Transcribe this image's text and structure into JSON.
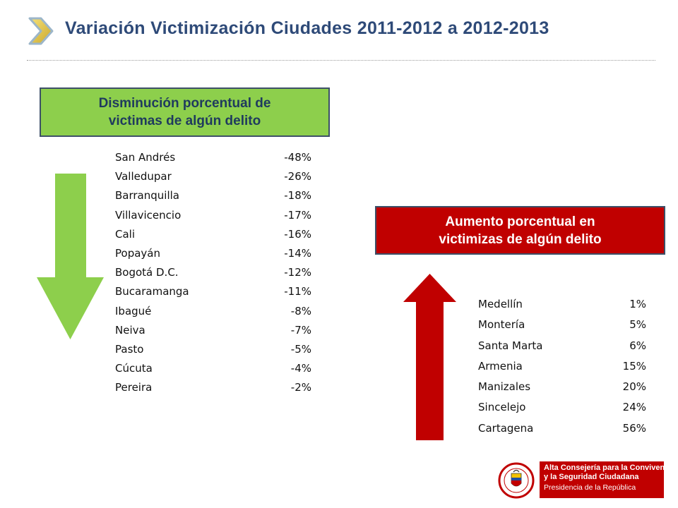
{
  "title": "Variación  Victimización Ciudades 2011-2012 a 2012-2013",
  "decrease": {
    "header_line1": "Disminución porcentual de",
    "header_line2": "victimas de algún delito",
    "color": "#8dcf4c",
    "items": [
      {
        "city": "San Andrés",
        "value": "-48%"
      },
      {
        "city": "Valledupar",
        "value": "-26%"
      },
      {
        "city": "Barranquilla",
        "value": "-18%"
      },
      {
        "city": "Villavicencio",
        "value": "-17%"
      },
      {
        "city": "Cali",
        "value": "-16%"
      },
      {
        "city": "Popayán",
        "value": "-14%"
      },
      {
        "city": "Bogotá D.C.",
        "value": "-12%"
      },
      {
        "city": "Bucaramanga",
        "value": "-11%"
      },
      {
        "city": "Ibagué",
        "value": "-8%"
      },
      {
        "city": "Neiva",
        "value": "-7%"
      },
      {
        "city": "Pasto",
        "value": "-5%"
      },
      {
        "city": "Cúcuta",
        "value": "-4%"
      },
      {
        "city": "Pereira",
        "value": "-2%"
      }
    ]
  },
  "increase": {
    "header_line1": "Aumento porcentual en",
    "header_line2": "victimizas de algún delito",
    "color": "#c00000",
    "items": [
      {
        "city": "Medellín",
        "value": "1%"
      },
      {
        "city": "Montería",
        "value": "5%"
      },
      {
        "city": "Santa Marta",
        "value": "6%"
      },
      {
        "city": "Armenia",
        "value": "15%"
      },
      {
        "city": "Manizales",
        "value": "20%"
      },
      {
        "city": "Sincelejo",
        "value": "24%"
      },
      {
        "city": "Cartagena",
        "value": "56%"
      }
    ]
  },
  "logo": {
    "line1": "Alta Consejería para la Convivencia",
    "line2": "y la Seguridad Ciudadana",
    "line3": "Presidencia de la República",
    "seal_text": "REPÚBLICA DE COLOMBIA"
  },
  "icons": {
    "title_icon": "chevron-right-icon",
    "decrease_icon": "arrow-down-icon",
    "increase_icon": "arrow-up-icon"
  }
}
